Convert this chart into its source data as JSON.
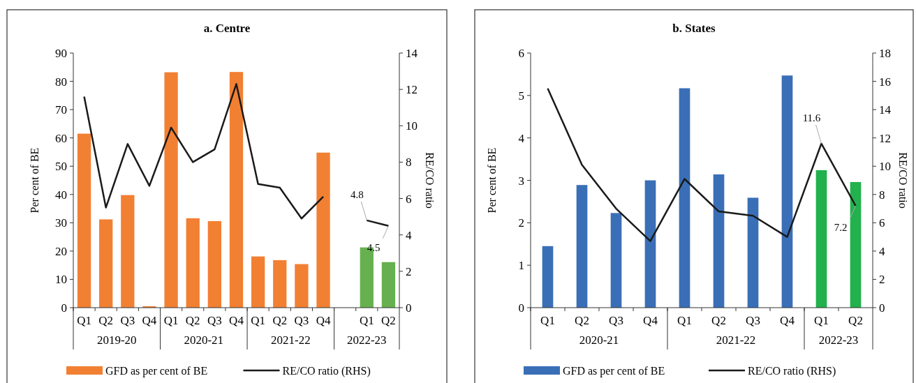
{
  "chart_data": [
    {
      "type": "bar",
      "title": "a. Centre",
      "ylabel": "Per cent of BE",
      "y2label": "RE/CO ratio",
      "legend": "bottom",
      "categories": [
        "Q1",
        "Q2",
        "Q3",
        "Q4",
        "Q1",
        "Q2",
        "Q3",
        "Q4",
        "Q1",
        "Q2",
        "Q3",
        "Q4",
        null,
        "Q1",
        "Q2"
      ],
      "annotations": [
        "2019-20",
        "2020-21",
        "2021-22",
        "2022-23"
      ],
      "ylim": [
        0,
        90
      ],
      "yticks": [
        0,
        10,
        20,
        30,
        40,
        50,
        60,
        70,
        80,
        90
      ],
      "y2lim": [
        0,
        14
      ],
      "y2ticks": [
        0,
        2,
        4,
        6,
        8,
        10,
        12,
        14
      ],
      "series": [
        {
          "name": "GFD as per cent of BE",
          "color": "#f28033",
          "colors": [
            "#f28033",
            "#f28033",
            "#f28033",
            "#f28033",
            "#f28033",
            "#f28033",
            "#f28033",
            "#f28033",
            "#f28033",
            "#f28033",
            "#f28033",
            "#f28033",
            null,
            "#67b04f",
            "#67b04f"
          ],
          "values": [
            61.5,
            31.2,
            39.8,
            0.5,
            83.2,
            31.6,
            30.6,
            83.3,
            18.1,
            16.8,
            15.4,
            54.8,
            null,
            21.3,
            16.1
          ]
        },
        {
          "name": "RE/CO ratio (RHS)",
          "type": "line",
          "axis": "y2",
          "color": "#1a1a1a",
          "values": [
            11.6,
            5.5,
            9.0,
            6.7,
            9.9,
            8.0,
            8.7,
            12.3,
            6.8,
            6.6,
            4.9,
            6.1,
            null,
            4.8,
            4.5
          ],
          "value_labels": [
            null,
            null,
            null,
            null,
            null,
            null,
            null,
            null,
            null,
            null,
            null,
            null,
            null,
            "4.8",
            "4.5"
          ]
        }
      ]
    },
    {
      "type": "bar",
      "title": "b. States",
      "ylabel": "Per cent of BE",
      "y2label": "RE/CO ratio",
      "legend": "bottom",
      "categories": [
        "Q1",
        "Q2",
        "Q3",
        "Q4",
        "Q1",
        "Q2",
        "Q3",
        "Q4",
        "Q1",
        "Q2"
      ],
      "annotations": [
        "2020-21",
        "2021-22",
        "2022-23"
      ],
      "ylim": [
        0,
        6
      ],
      "yticks": [
        0,
        1,
        2,
        3,
        4,
        5,
        6
      ],
      "y2lim": [
        0,
        18
      ],
      "y2ticks": [
        0,
        2,
        4,
        6,
        8,
        10,
        12,
        14,
        16,
        18
      ],
      "series": [
        {
          "name": "GFD as per cent of BE",
          "color": "#3a6fb7",
          "colors": [
            "#3a6fb7",
            "#3a6fb7",
            "#3a6fb7",
            "#3a6fb7",
            "#3a6fb7",
            "#3a6fb7",
            "#3a6fb7",
            "#3a6fb7",
            "#22b14c",
            "#22b14c"
          ],
          "values": [
            1.45,
            2.89,
            2.23,
            3.0,
            5.17,
            3.14,
            2.59,
            5.47,
            3.24,
            2.96
          ]
        },
        {
          "name": "RE/CO ratio (RHS)",
          "type": "line",
          "axis": "y2",
          "color": "#1a1a1a",
          "values": [
            15.5,
            10.1,
            7.0,
            4.7,
            9.1,
            6.8,
            6.5,
            5.0,
            11.6,
            7.2
          ],
          "value_labels": [
            null,
            null,
            null,
            null,
            null,
            null,
            null,
            null,
            "11.6",
            "7.2"
          ]
        }
      ]
    }
  ]
}
